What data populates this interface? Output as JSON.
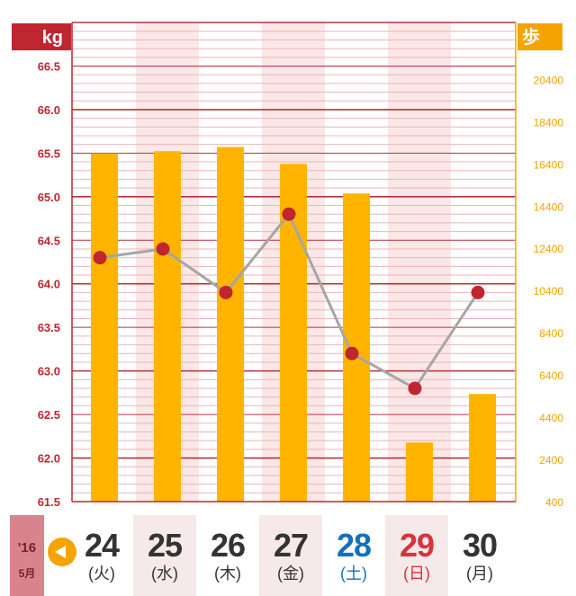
{
  "chart_data": {
    "type": "bar+line",
    "left_axis": {
      "label": "kg",
      "range": [
        61.5,
        67.0
      ],
      "ticks": [
        "61.5",
        "62.0",
        "62.5",
        "63.0",
        "63.5",
        "64.0",
        "64.5",
        "65.0",
        "65.5",
        "66.0",
        "66.5"
      ]
    },
    "right_axis": {
      "label": "歩",
      "range": [
        400,
        23100
      ],
      "ticks": [
        "400",
        "2400",
        "4400",
        "6400",
        "8400",
        "10400",
        "12400",
        "14400",
        "16400",
        "18400",
        "20400"
      ]
    },
    "categories": [
      "24",
      "25",
      "26",
      "27",
      "28",
      "29",
      "30"
    ],
    "series": [
      {
        "kind": "bar",
        "axis": "right",
        "values": [
          16900,
          17000,
          17200,
          16400,
          15000,
          3200,
          5500
        ]
      },
      {
        "kind": "line",
        "axis": "left",
        "values": [
          64.3,
          64.4,
          63.9,
          64.8,
          63.2,
          62.8,
          63.9
        ]
      }
    ],
    "grid": true
  },
  "colors": {
    "left_axis": "#c0262f",
    "right_axis": "#f5a300",
    "bar": "#ffb400",
    "line": "#a6a6a6",
    "marker": "#c0262f",
    "band": "#fbe7e7",
    "saturday": "#1170bd",
    "sunday": "#d6333d",
    "weekday": "#333333"
  },
  "footer": {
    "year": "'16",
    "month": "5月",
    "prev_icon": "triangle-left-icon",
    "days": [
      {
        "num": "24",
        "dow": "(火)",
        "type": "weekday",
        "shaded": false
      },
      {
        "num": "25",
        "dow": "(水)",
        "type": "weekday",
        "shaded": true
      },
      {
        "num": "26",
        "dow": "(木)",
        "type": "weekday",
        "shaded": false
      },
      {
        "num": "27",
        "dow": "(金)",
        "type": "weekday",
        "shaded": true
      },
      {
        "num": "28",
        "dow": "(土)",
        "type": "saturday",
        "shaded": false
      },
      {
        "num": "29",
        "dow": "(日)",
        "type": "sunday",
        "shaded": true
      },
      {
        "num": "30",
        "dow": "(月)",
        "type": "weekday",
        "shaded": false
      }
    ]
  }
}
